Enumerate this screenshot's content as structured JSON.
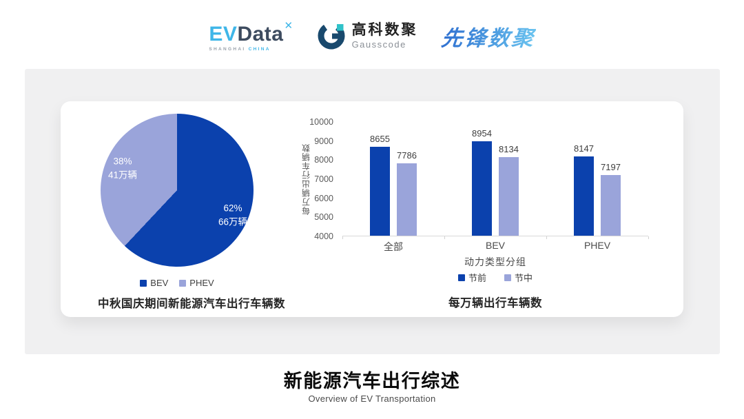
{
  "header": {
    "evdata": {
      "ev": "EV",
      "data": "Data",
      "spark": "✕",
      "sub_left": "SHANGHAI",
      "sub_right": "CHINA"
    },
    "gausscode": {
      "cn": "高科数聚",
      "en": "Gausscode"
    },
    "pioneer": {
      "text": "先锋数聚"
    }
  },
  "footer": {
    "title": "新能源汽车出行综述",
    "subtitle": "Overview of EV Transportation"
  },
  "colors": {
    "series_dark": "#0B41AD",
    "series_light": "#9AA4DA",
    "panel_bg": "#F0F0F1",
    "axis_line": "#D9D9D9",
    "evdata_cyan": "#3FB6E8",
    "evdata_slate": "#3D4B5F",
    "gauss_dark": "#19496D",
    "gauss_teal": "#2FC2C9"
  },
  "chart_data": [
    {
      "type": "pie",
      "title": "中秋国庆期间新能源汽车出行车辆数",
      "slices": [
        {
          "label": "BEV",
          "percent": 62,
          "percent_label": "62%",
          "value_label": "66万辆",
          "color": "#0B41AD"
        },
        {
          "label": "PHEV",
          "percent": 38,
          "percent_label": "38%",
          "value_label": "41万辆",
          "color": "#9AA4DA"
        }
      ],
      "start_angle_deg": 0,
      "direction": "clockwise",
      "legend_position": "bottom"
    },
    {
      "type": "bar",
      "title": "每万辆出行车辆数",
      "xlabel": "动力类型分组",
      "ylabel": "每万辆出行车辆数",
      "categories": [
        "全部",
        "BEV",
        "PHEV"
      ],
      "series": [
        {
          "name": "节前",
          "values": [
            8655,
            8954,
            8147
          ],
          "color": "#0B41AD"
        },
        {
          "name": "节中",
          "values": [
            7786,
            8134,
            7197
          ],
          "color": "#9AA4DA"
        }
      ],
      "ylim": [
        4000,
        10000
      ],
      "ytick_step": 1000,
      "grid": false,
      "data_labels": true,
      "legend_position": "bottom"
    }
  ]
}
